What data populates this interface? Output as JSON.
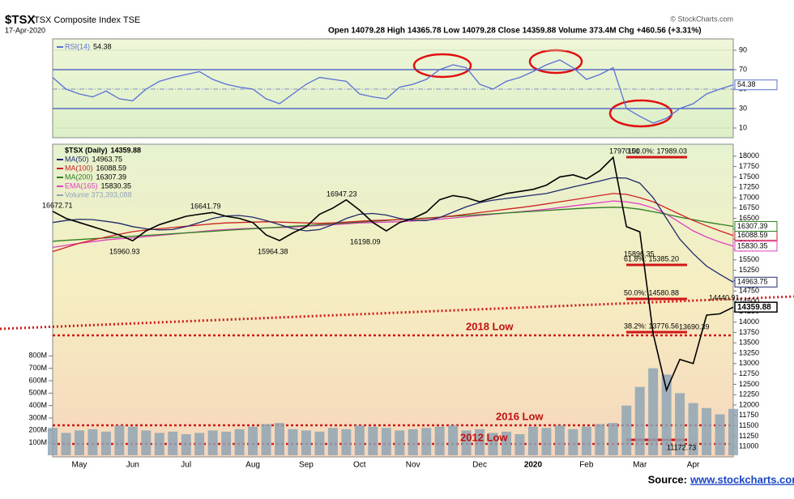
{
  "header": {
    "symbol": "$TSX",
    "title": "TSX Composite Index TSE",
    "date": "17-Apr-2020",
    "quote": "Open 14079.28 High 14365.78 Low 14079.28 Close 14359.88 Volume 373.4M Chg +460.56 (+3.31%)",
    "credit": "© StockCharts.com"
  },
  "footer": {
    "label": "Source:",
    "link": "www.stockcharts.com"
  },
  "annotations": [
    "16672.71",
    "15960.93",
    "16641.79",
    "15964.38",
    "16947.23",
    "16198.09",
    "17970.51",
    "15896.35",
    "14440.91",
    "13690.39",
    "11172.73",
    "100.0%: 17989.03",
    "61.8%: 15385.20",
    "50.0%: 14580.88",
    "38.2%: 13776.56",
    "2018 Low",
    "2016 Low",
    "2012 Low"
  ],
  "chart_data": [
    {
      "type": "line",
      "ylim": [
        0,
        100
      ],
      "yticks": [
        10,
        30,
        50,
        70,
        90
      ],
      "series": [
        {
          "name": "RSI(14)",
          "color": "#5a6fd6",
          "values": [
            62,
            50,
            45,
            42,
            48,
            40,
            38,
            50,
            58,
            62,
            65,
            68,
            60,
            55,
            52,
            50,
            40,
            35,
            45,
            55,
            62,
            60,
            58,
            45,
            42,
            40,
            52,
            55,
            60,
            70,
            75,
            72,
            55,
            50,
            58,
            62,
            68,
            75,
            80,
            72,
            60,
            65,
            72,
            30,
            22,
            15,
            20,
            30,
            35,
            45,
            50,
            54.38
          ]
        }
      ]
    },
    {
      "type": "line",
      "ylim": [
        10750,
        18250
      ],
      "yticks": [
        11000,
        11250,
        11500,
        11750,
        12000,
        12250,
        12500,
        12750,
        13000,
        13250,
        13500,
        13750,
        14000,
        14250,
        14500,
        14750,
        15000,
        15250,
        15500,
        15750,
        16000,
        16250,
        16500,
        16750,
        17000,
        17250,
        17500,
        17750,
        18000
      ],
      "categories": [
        null,
        null,
        "May",
        null,
        null,
        null,
        "Jun",
        null,
        null,
        null,
        "Jul",
        null,
        null,
        null,
        null,
        "Aug",
        null,
        null,
        null,
        "Sep",
        null,
        null,
        null,
        "Oct",
        null,
        null,
        null,
        "Nov",
        null,
        null,
        null,
        null,
        "Dec",
        null,
        null,
        null,
        "2020",
        null,
        null,
        null,
        "Feb",
        null,
        null,
        null,
        "Mar",
        null,
        null,
        null,
        "Apr",
        null,
        null,
        null
      ],
      "series": [
        {
          "name": "$TSX (Daily)",
          "color": "#000000",
          "values": [
            16672.71,
            16500,
            16400,
            16300,
            16200,
            16100,
            15960.93,
            16200,
            16350,
            16450,
            16550,
            16600,
            16641.79,
            16550,
            16500,
            16400,
            16100,
            15964.38,
            16150,
            16300,
            16600,
            16750,
            16947.23,
            16700,
            16400,
            16198.09,
            16400,
            16500,
            16650,
            16950,
            17050,
            17000,
            16900,
            17000,
            17100,
            17150,
            17200,
            17300,
            17500,
            17550,
            17450,
            17650,
            17970.51,
            16300,
            16175,
            13716,
            12360,
            13100,
            13000,
            14167,
            14200,
            14359.88
          ]
        },
        {
          "name": "MA(50)",
          "color": "#1f2a6b",
          "values": [
            16400,
            16450,
            16480,
            16470,
            16430,
            16380,
            16300,
            16250,
            16220,
            16230,
            16300,
            16400,
            16500,
            16560,
            16570,
            16530,
            16450,
            16350,
            16250,
            16200,
            16230,
            16350,
            16500,
            16600,
            16620,
            16580,
            16500,
            16450,
            16450,
            16520,
            16650,
            16780,
            16880,
            16940,
            16980,
            17020,
            17060,
            17100,
            17180,
            17260,
            17330,
            17400,
            17480,
            17470,
            17350,
            17000,
            16500,
            16000,
            15650,
            15350,
            15150,
            14963.75
          ]
        },
        {
          "name": "MA(100)",
          "color": "#cc2222",
          "values": [
            15700,
            15800,
            15900,
            15980,
            16050,
            16120,
            16180,
            16220,
            16250,
            16280,
            16310,
            16340,
            16370,
            16390,
            16400,
            16410,
            16420,
            16410,
            16400,
            16390,
            16380,
            16390,
            16410,
            16430,
            16450,
            16460,
            16470,
            16480,
            16500,
            16530,
            16560,
            16600,
            16640,
            16680,
            16720,
            16760,
            16800,
            16850,
            16900,
            16950,
            17000,
            17050,
            17100,
            17080,
            17000,
            16900,
            16750,
            16600,
            16450,
            16320,
            16200,
            16088.59
          ]
        },
        {
          "name": "MA(200)",
          "color": "#2e7d22",
          "values": [
            15950,
            15970,
            15990,
            16010,
            16030,
            16050,
            16070,
            16090,
            16110,
            16130,
            16150,
            16170,
            16190,
            16210,
            16230,
            16250,
            16270,
            16290,
            16310,
            16330,
            16350,
            16370,
            16390,
            16410,
            16430,
            16450,
            16470,
            16490,
            16510,
            16530,
            16550,
            16570,
            16590,
            16610,
            16630,
            16650,
            16670,
            16690,
            16710,
            16730,
            16750,
            16760,
            16770,
            16760,
            16720,
            16660,
            16600,
            16530,
            16470,
            16410,
            16360,
            16307.39
          ]
        },
        {
          "name": "EMA(165)",
          "color": "#e040c0",
          "values": [
            15800,
            15850,
            15900,
            15940,
            15980,
            16010,
            16030,
            16060,
            16090,
            16120,
            16150,
            16180,
            16210,
            16230,
            16250,
            16260,
            16270,
            16280,
            16290,
            16310,
            16330,
            16350,
            16370,
            16390,
            16400,
            16410,
            16420,
            16440,
            16460,
            16480,
            16510,
            16540,
            16570,
            16600,
            16630,
            16660,
            16690,
            16720,
            16760,
            16800,
            16840,
            16880,
            16920,
            16900,
            16850,
            16750,
            16600,
            16400,
            16200,
            16050,
            15930,
            15830.35
          ]
        }
      ]
    },
    {
      "type": "bar",
      "ylim": [
        0,
        900
      ],
      "legend_label": "Volume 373,393,088",
      "yticks": [
        {
          "value": 100,
          "label": "100M"
        },
        {
          "value": 200,
          "label": "200M"
        },
        {
          "value": 300,
          "label": "300M"
        },
        {
          "value": 400,
          "label": "400M"
        },
        {
          "value": 500,
          "label": "500M"
        },
        {
          "value": 600,
          "label": "600M"
        },
        {
          "value": 700,
          "label": "700M"
        },
        {
          "value": 800,
          "label": "800M"
        }
      ],
      "series": [
        {
          "name": "Volume",
          "color": "#8fa4b4",
          "values": [
            220,
            180,
            200,
            210,
            190,
            240,
            230,
            200,
            180,
            190,
            170,
            180,
            200,
            190,
            210,
            230,
            250,
            260,
            210,
            200,
            190,
            220,
            210,
            240,
            230,
            220,
            200,
            210,
            220,
            230,
            240,
            200,
            210,
            180,
            190,
            170,
            230,
            220,
            240,
            210,
            230,
            250,
            260,
            400,
            550,
            700,
            650,
            500,
            420,
            380,
            330,
            373.4
          ]
        }
      ]
    }
  ]
}
